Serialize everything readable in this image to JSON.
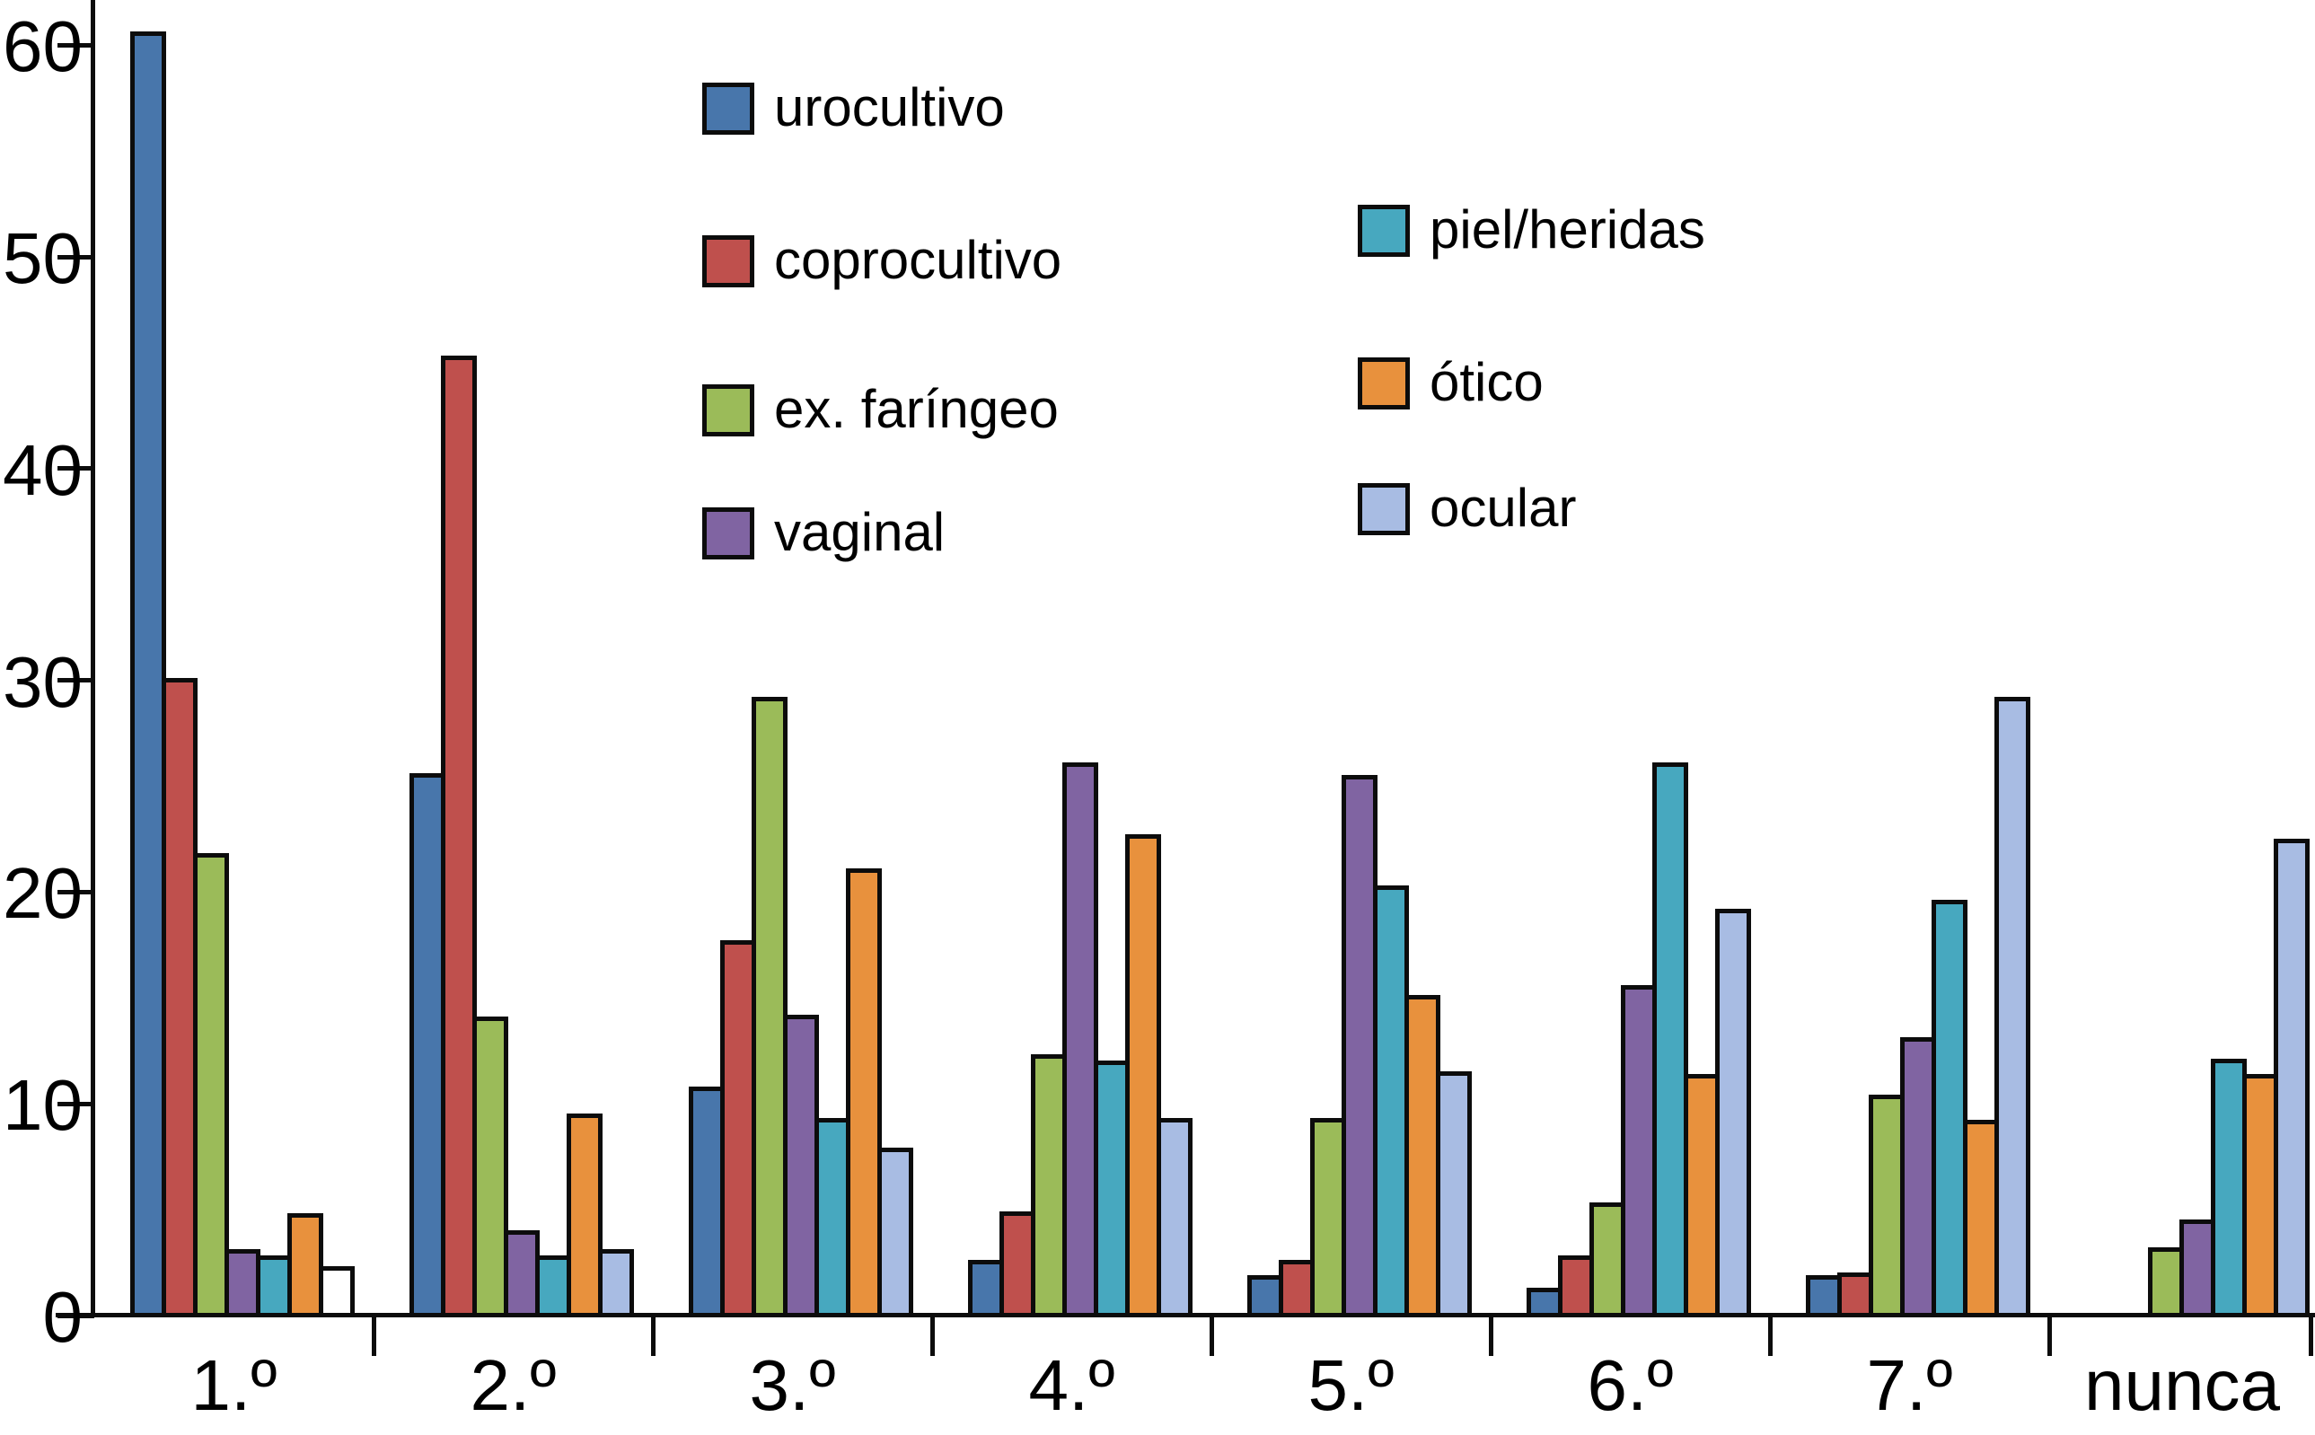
{
  "chart_data": {
    "type": "bar",
    "title": "",
    "xlabel": "",
    "ylabel": "",
    "categories": [
      "1.º",
      "2.º",
      "3.º",
      "4.º",
      "5.º",
      "6.º",
      "7.º",
      "nunca"
    ],
    "series": [
      {
        "name": "urocultivo",
        "color": "#4876ab",
        "values": [
          60.5,
          25.5,
          10.7,
          2.5,
          1.8,
          1.2,
          1.8,
          0
        ]
      },
      {
        "name": "coprocultivo",
        "color": "#bf504d",
        "values": [
          30.0,
          45.2,
          17.6,
          4.8,
          2.5,
          2.7,
          1.9,
          0
        ]
      },
      {
        "name": "ex. faríngeo",
        "color": "#9bbb59",
        "values": [
          21.7,
          14.0,
          29.1,
          12.2,
          9.2,
          5.2,
          10.3,
          3.1
        ]
      },
      {
        "name": "vaginal",
        "color": "#8064a2",
        "values": [
          3.0,
          3.9,
          14.1,
          26.0,
          25.4,
          15.5,
          13.0,
          4.4
        ]
      },
      {
        "name": "piel/heridas",
        "color": "#47a8bf",
        "values": [
          2.7,
          2.7,
          9.2,
          11.9,
          20.2,
          26.0,
          19.5,
          12.0
        ]
      },
      {
        "name": "ótico",
        "color": "#e8913d",
        "values": [
          4.7,
          9.4,
          21.0,
          22.6,
          15.0,
          11.3,
          9.1,
          11.3
        ]
      },
      {
        "name": "ocular",
        "color": "#a8bce3",
        "values": [
          2.2,
          3.0,
          7.8,
          9.2,
          11.4,
          19.1,
          29.1,
          22.4
        ]
      }
    ],
    "fill_overrides": [
      {
        "series_index": 6,
        "category_index": 0,
        "color": "#ffffff"
      }
    ],
    "ylim": [
      0,
      62
    ],
    "yticks": [
      0,
      10,
      20,
      30,
      40,
      50,
      60
    ],
    "grid": false,
    "axis_color": "#0c0c0c",
    "legend": {
      "position": "inside-top-center",
      "columns": [
        [
          "urocultivo",
          "coprocultivo",
          "ex. faríngeo",
          "vaginal"
        ],
        [
          "piel/heridas",
          "ótico",
          "ocular"
        ]
      ]
    }
  }
}
